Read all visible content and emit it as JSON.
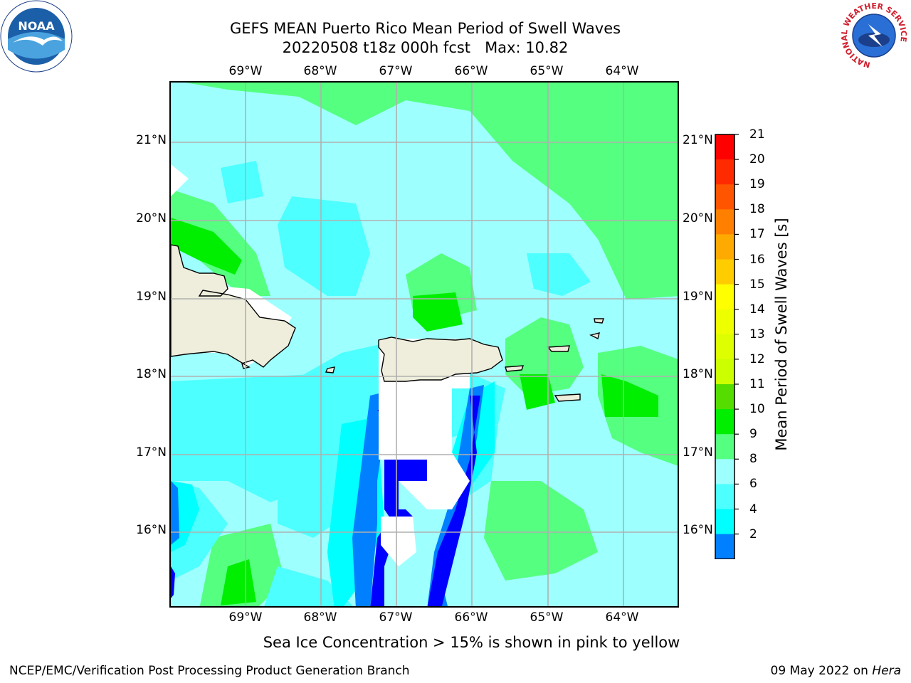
{
  "title": {
    "line1": "GEFS MEAN Puerto Rico Mean Period of Swell Waves",
    "line2": "20220508 t18z 000h fcst   Max: 10.82"
  },
  "map": {
    "longitude_labels": [
      "69°W",
      "68°W",
      "67°W",
      "66°W",
      "65°W",
      "64°W"
    ],
    "latitude_labels": [
      "21°N",
      "20°N",
      "19°N",
      "18°N",
      "17°N",
      "16°N"
    ],
    "land_color": "#efeedc",
    "masked_color": "#ffffff",
    "extent": {
      "lon_min": -70.0,
      "lon_max": -63.25,
      "lat_min": 15.0,
      "lat_max": 21.75
    }
  },
  "colorbar": {
    "label": "Mean Period of Swell Waves [s]",
    "ticks": [
      "21",
      "20",
      "19",
      "18",
      "17",
      "16",
      "15",
      "14",
      "13",
      "12",
      "11",
      "10",
      "9",
      "8",
      "6",
      "4",
      "2"
    ],
    "bins": [
      {
        "from": 2,
        "to": 4,
        "color": "#0080ff"
      },
      {
        "from": 4,
        "to": 6,
        "color": "#00ffff"
      },
      {
        "from": 6,
        "to": 8,
        "color": "#4dffff"
      },
      {
        "from": 8,
        "to": 9,
        "color": "#9effff"
      },
      {
        "from": 9,
        "to": 10,
        "color": "#55ff80"
      },
      {
        "from": 10,
        "to": 11,
        "color": "#00ee00"
      },
      {
        "from": 11,
        "to": 12,
        "color": "#55dd00"
      },
      {
        "from": 12,
        "to": 13,
        "color": "#ccff00"
      },
      {
        "from": 13,
        "to": 14,
        "color": "#ddff00"
      },
      {
        "from": 14,
        "to": 15,
        "color": "#eeff00"
      },
      {
        "from": 15,
        "to": 16,
        "color": "#ffff00"
      },
      {
        "from": 16,
        "to": 17,
        "color": "#ffcc00"
      },
      {
        "from": 17,
        "to": 18,
        "color": "#ffaa00"
      },
      {
        "from": 18,
        "to": 19,
        "color": "#ff8000"
      },
      {
        "from": 19,
        "to": 20,
        "color": "#ff5500"
      },
      {
        "from": 20,
        "to": 21,
        "color": "#ff2a00"
      },
      {
        "from": 21,
        "to": 22,
        "color": "#ff0000"
      }
    ],
    "under_color": "#0000ff"
  },
  "note": "Sea Ice Concentration > 15% is shown in pink to yellow",
  "footer": {
    "left": "NCEP/EMC/Verification Post Processing Product Generation Branch",
    "date": "09 May 2022 on",
    "host": "Hera"
  },
  "logos": {
    "noaa_text": "NOAA",
    "nws_ring_text": "NATIONAL WEATHER SERVICE"
  }
}
